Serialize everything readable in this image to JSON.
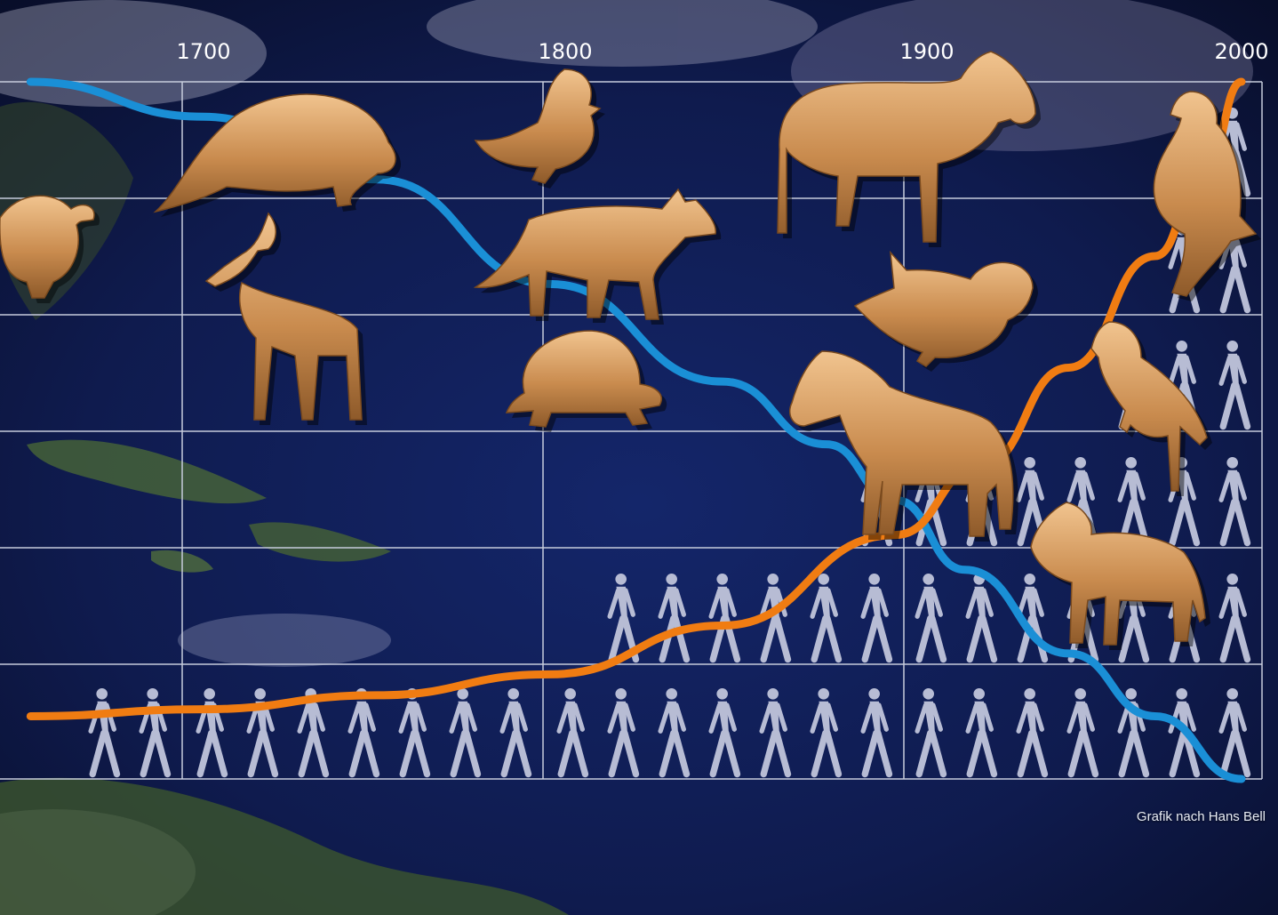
{
  "chart_data": {
    "type": "line",
    "title": "",
    "xlabel": "",
    "ylabel": "",
    "x_ticks": [
      "1700",
      "1800",
      "1900",
      "2000"
    ],
    "xlim": [
      1650,
      2000
    ],
    "grid": true,
    "legend": "none",
    "series": [
      {
        "color": "#1a8fd6",
        "x": [
          1650,
          1700,
          1750,
          1800,
          1850,
          1880,
          1900,
          1920,
          1950,
          1975,
          2000
        ],
        "values": [
          1.0,
          0.95,
          0.86,
          0.71,
          0.57,
          0.48,
          0.4,
          0.3,
          0.18,
          0.09,
          0.0
        ]
      },
      {
        "color": "#f07c12",
        "x": [
          1650,
          1700,
          1750,
          1800,
          1850,
          1900,
          1925,
          1950,
          1975,
          1990,
          2000
        ],
        "values": [
          0.09,
          0.1,
          0.12,
          0.15,
          0.22,
          0.35,
          0.45,
          0.59,
          0.75,
          0.88,
          1.0
        ]
      }
    ],
    "pictograph_rows": [
      {
        "label_column_counts": [
          2,
          7,
          7,
          7
        ]
      },
      {
        "label_column_counts": [
          0,
          0,
          6,
          7
        ]
      },
      {
        "label_column_counts": [
          0,
          0,
          1,
          7
        ]
      },
      {
        "label_column_counts": [
          0,
          0,
          0,
          3
        ]
      },
      {
        "label_column_counts": [
          0,
          0,
          0,
          2
        ]
      },
      {
        "label_column_counts": [
          0,
          0,
          0,
          1
        ]
      }
    ],
    "animals": [
      "dodo",
      "steller-sea-cow",
      "blue-antelope",
      "labrador-duck",
      "thylacine-wolf",
      "giant-tortoise",
      "quagga",
      "heath-hen",
      "przewalski-horse",
      "passenger-pigeon",
      "carolina-parakeet",
      "thylacine"
    ]
  },
  "credit": "Grafik nach Hans Bell",
  "colors": {
    "gold": "#c98b4e",
    "human": "#b7bcd4",
    "grid": "#c7ccdc",
    "ocean": "#101a44"
  }
}
